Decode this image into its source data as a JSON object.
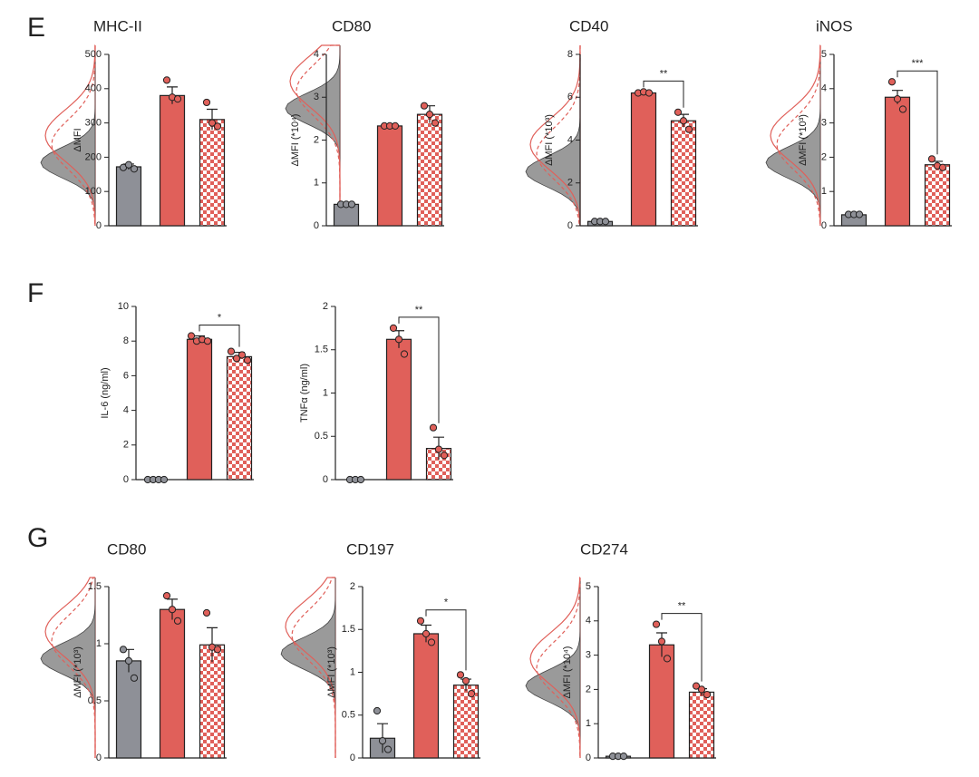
{
  "panel_labels": [
    "E",
    "F",
    "G"
  ],
  "chart_data": [
    {
      "type": "bar",
      "title": "MHC-II",
      "ylabel": "ΔMFI",
      "ylim": [
        0,
        500
      ],
      "yticks": [
        0,
        100,
        200,
        300,
        400,
        500
      ],
      "values": [
        172,
        380,
        310
      ],
      "errors": [
        8,
        25,
        30
      ],
      "points": [
        [
          170,
          178,
          166
        ],
        [
          425,
          375,
          370
        ],
        [
          360,
          300,
          290
        ]
      ],
      "colors": [
        "#8e9097",
        "#e0605a",
        "#e0605a"
      ],
      "hatch": [
        false,
        false,
        true
      ]
    },
    {
      "type": "bar",
      "title": "CD80",
      "ylabel": "ΔMFI (*10⁴)",
      "ylim": [
        0,
        4
      ],
      "yticks": [
        0,
        1,
        2,
        3,
        4
      ],
      "values": [
        0.5,
        2.33,
        2.6
      ],
      "errors": [
        0.02,
        0.02,
        0.2
      ],
      "points": [
        [
          0.5,
          0.5,
          0.5
        ],
        [
          2.33,
          2.33,
          2.33
        ],
        [
          2.8,
          2.6,
          2.4
        ]
      ],
      "colors": [
        "#8e9097",
        "#e0605a",
        "#e0605a"
      ],
      "hatch": [
        false,
        false,
        true
      ]
    },
    {
      "type": "bar",
      "title": "CD40",
      "ylabel": "ΔMFI (*10³)",
      "ylim": [
        0,
        8
      ],
      "yticks": [
        0,
        2,
        4,
        6,
        8
      ],
      "values": [
        0.2,
        6.2,
        4.9
      ],
      "errors": [
        0.03,
        0.05,
        0.3
      ],
      "points": [
        [
          0.2,
          0.2,
          0.2
        ],
        [
          6.2,
          6.25,
          6.2
        ],
        [
          5.3,
          4.9,
          4.5
        ]
      ],
      "colors": [
        "#8e9097",
        "#e0605a",
        "#e0605a"
      ],
      "hatch": [
        false,
        false,
        true
      ],
      "significance": {
        "bars": [
          1,
          2
        ],
        "label": "**"
      }
    },
    {
      "type": "bar",
      "title": "iNOS",
      "ylabel": "ΔMFI (*10³)",
      "ylim": [
        0,
        5
      ],
      "yticks": [
        0,
        1,
        2,
        3,
        4,
        5
      ],
      "values": [
        0.32,
        3.75,
        1.78
      ],
      "errors": [
        0.02,
        0.2,
        0.1
      ],
      "points": [
        [
          0.33,
          0.33,
          0.33
        ],
        [
          4.2,
          3.7,
          3.4
        ],
        [
          1.95,
          1.75,
          1.7
        ]
      ],
      "colors": [
        "#8e9097",
        "#e0605a",
        "#e0605a"
      ],
      "hatch": [
        false,
        false,
        true
      ],
      "significance": {
        "bars": [
          1,
          2
        ],
        "label": "***"
      }
    },
    {
      "type": "bar",
      "ylabel": "IL-6 (ng/ml)",
      "ylim": [
        0,
        10
      ],
      "yticks": [
        0,
        2,
        4,
        6,
        8,
        10
      ],
      "values": [
        0,
        8.1,
        7.1
      ],
      "errors": [
        0,
        0.2,
        0.25
      ],
      "points": [
        [
          0,
          0,
          0,
          0
        ],
        [
          8.3,
          8.0,
          8.1,
          8.0
        ],
        [
          7.4,
          7.0,
          7.2,
          6.9
        ]
      ],
      "colors": [
        "#8e9097",
        "#e0605a",
        "#e0605a"
      ],
      "hatch": [
        false,
        false,
        true
      ],
      "significance": {
        "bars": [
          1,
          2
        ],
        "label": "*"
      }
    },
    {
      "type": "bar",
      "ylabel": "TNFα (ng/ml)",
      "ylim": [
        0,
        2
      ],
      "yticks": [
        0,
        0.5,
        1,
        1.5,
        2
      ],
      "values": [
        0,
        1.62,
        0.36
      ],
      "errors": [
        0,
        0.1,
        0.13
      ],
      "points": [
        [
          0,
          0,
          0
        ],
        [
          1.75,
          1.62,
          1.45
        ],
        [
          0.6,
          0.35,
          0.28
        ]
      ],
      "colors": [
        "#8e9097",
        "#e0605a",
        "#e0605a"
      ],
      "hatch": [
        false,
        false,
        true
      ],
      "significance": {
        "bars": [
          1,
          2
        ],
        "label": "**"
      }
    },
    {
      "type": "bar",
      "title": "CD80",
      "ylabel": "ΔMFI (*10³)",
      "ylim": [
        0,
        1.5
      ],
      "yticks": [
        0,
        0.5,
        1,
        1.5
      ],
      "values": [
        0.85,
        1.3,
        0.99
      ],
      "errors": [
        0.1,
        0.09,
        0.15
      ],
      "points": [
        [
          0.95,
          0.85,
          0.7
        ],
        [
          1.42,
          1.3,
          1.2
        ],
        [
          1.27,
          0.97,
          0.95
        ]
      ],
      "colors": [
        "#8e9097",
        "#e0605a",
        "#e0605a"
      ],
      "hatch": [
        false,
        false,
        true
      ]
    },
    {
      "type": "bar",
      "title": "CD197",
      "ylabel": "ΔMFI (*10³)",
      "ylim": [
        0,
        2
      ],
      "yticks": [
        0,
        0.5,
        1,
        1.5,
        2
      ],
      "values": [
        0.23,
        1.45,
        0.85
      ],
      "errors": [
        0.17,
        0.1,
        0.07
      ],
      "points": [
        [
          0.55,
          0.2,
          0.1
        ],
        [
          1.6,
          1.45,
          1.35
        ],
        [
          0.97,
          0.9,
          0.75
        ]
      ],
      "colors": [
        "#8e9097",
        "#e0605a",
        "#e0605a"
      ],
      "hatch": [
        false,
        false,
        true
      ],
      "significance": {
        "bars": [
          1,
          2
        ],
        "label": "*"
      }
    },
    {
      "type": "bar",
      "title": "CD274",
      "ylabel": "ΔMFI (*10⁴)",
      "ylim": [
        0,
        5
      ],
      "yticks": [
        0,
        1,
        2,
        3,
        4,
        5
      ],
      "values": [
        0.05,
        3.3,
        1.92
      ],
      "errors": [
        0.01,
        0.35,
        0.1
      ],
      "points": [
        [
          0.05,
          0.05,
          0.05
        ],
        [
          3.9,
          3.4,
          2.9
        ],
        [
          2.1,
          2.0,
          1.85
        ]
      ],
      "colors": [
        "#8e9097",
        "#e0605a",
        "#e0605a"
      ],
      "hatch": [
        false,
        false,
        true
      ],
      "significance": {
        "bars": [
          1,
          2
        ],
        "label": "**"
      }
    }
  ]
}
